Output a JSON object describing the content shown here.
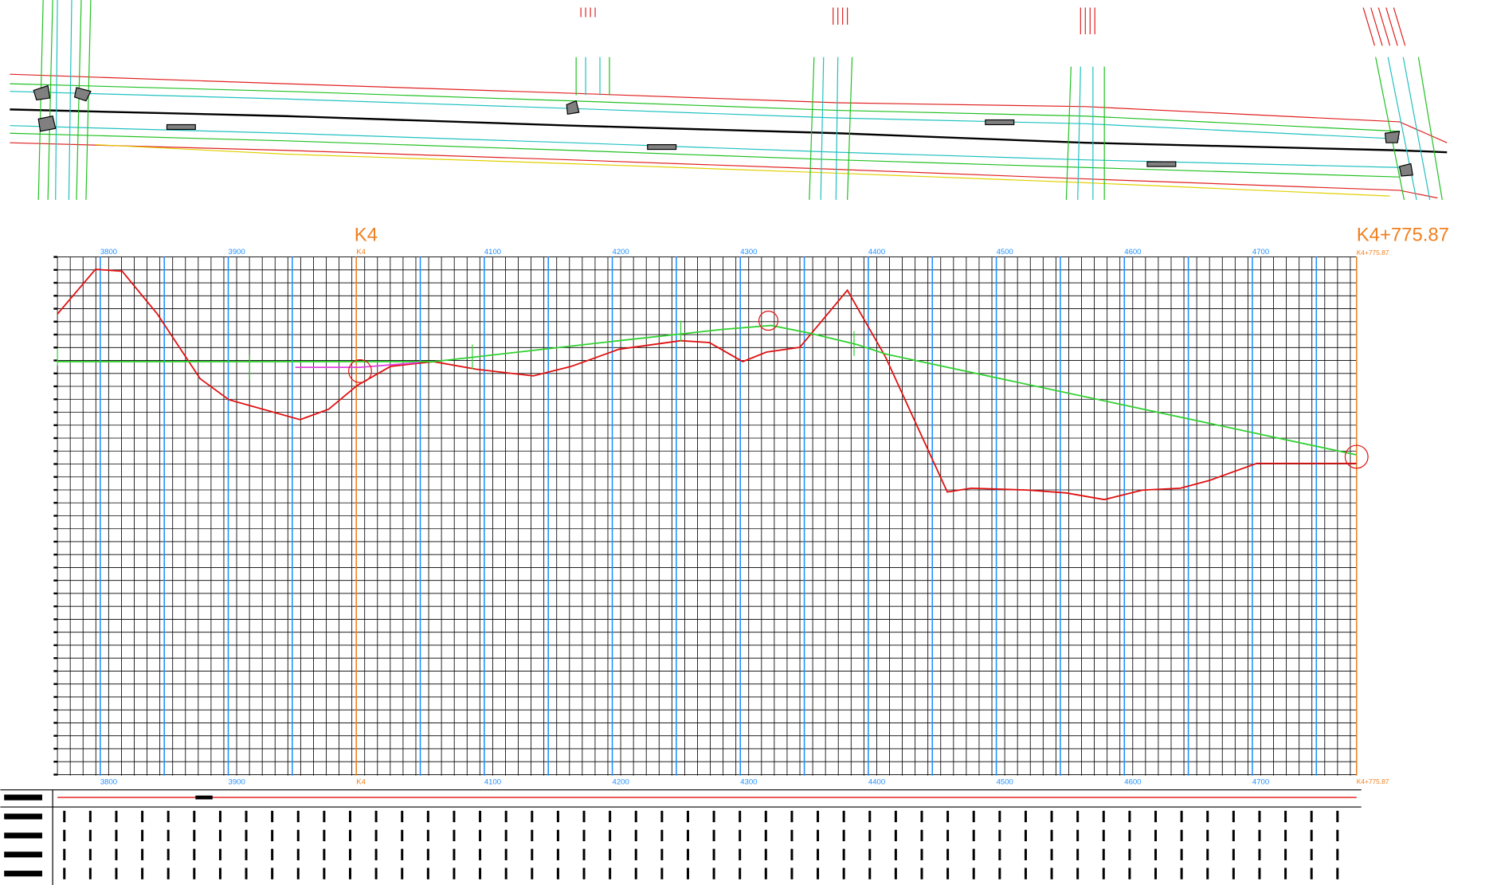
{
  "profile": {
    "start_label": "K4",
    "end_label": "K4+775.87",
    "stations": [
      "3800",
      "3900",
      "K4",
      "4100",
      "4200",
      "4300",
      "4400",
      "4500",
      "4600",
      "4700",
      "K4+775.87"
    ]
  }
}
